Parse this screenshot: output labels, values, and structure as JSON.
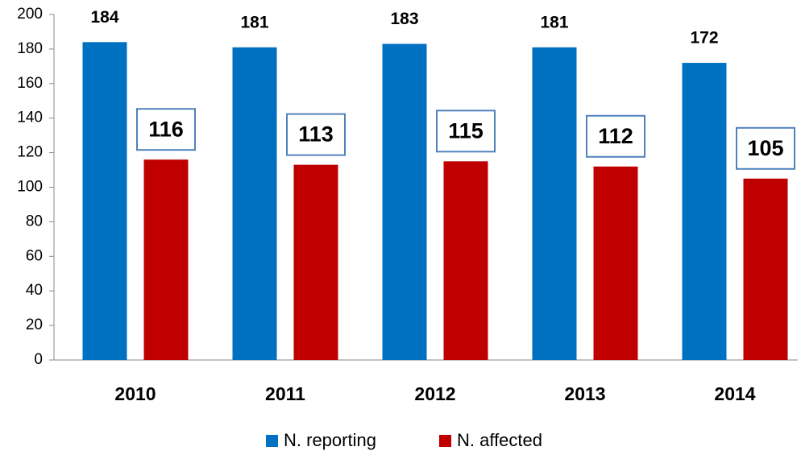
{
  "chart_data": {
    "type": "bar",
    "categories": [
      "2010",
      "2011",
      "2012",
      "2013",
      "2014"
    ],
    "series": [
      {
        "name": "N. reporting",
        "color": "#0070c0",
        "values": [
          184,
          181,
          183,
          181,
          172
        ]
      },
      {
        "name": "N. affected",
        "color": "#c00000",
        "values": [
          116,
          113,
          115,
          112,
          105
        ]
      }
    ],
    "ylim": [
      0,
      200
    ],
    "yticks": [
      0,
      20,
      40,
      60,
      80,
      100,
      120,
      140,
      160,
      180,
      200
    ],
    "legend": "bottom"
  }
}
